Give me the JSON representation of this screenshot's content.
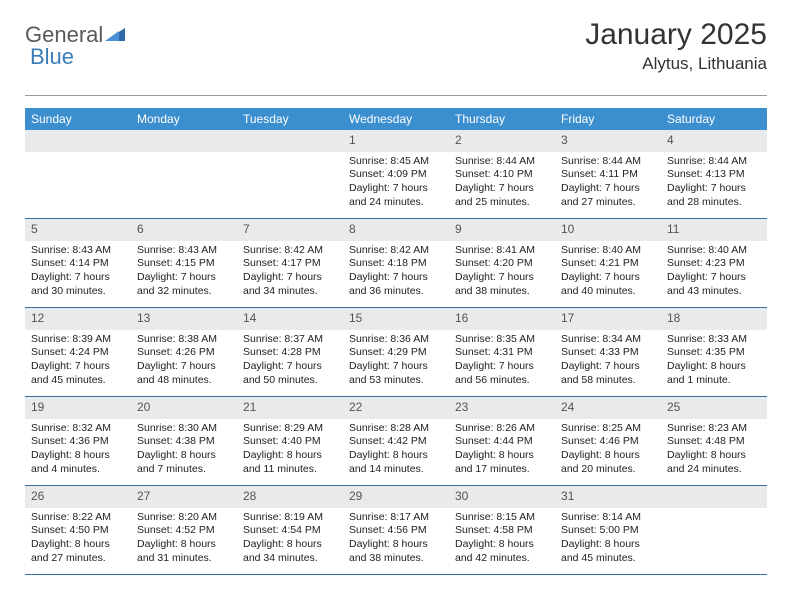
{
  "logo": {
    "text1": "General",
    "text2": "Blue"
  },
  "title": "January 2025",
  "location": "Alytus, Lithuania",
  "colors": {
    "headerBar": "#3b8fcf",
    "dayNumBg": "#e8eaec",
    "weekRule": "#3b6fa0",
    "logoAccent": "#3a7db8",
    "logoText": "#5a5a5a"
  },
  "dayNames": [
    "Sunday",
    "Monday",
    "Tuesday",
    "Wednesday",
    "Thursday",
    "Friday",
    "Saturday"
  ],
  "weeks": [
    [
      {
        "n": "",
        "sr": "",
        "ss": "",
        "dl": ""
      },
      {
        "n": "",
        "sr": "",
        "ss": "",
        "dl": ""
      },
      {
        "n": "",
        "sr": "",
        "ss": "",
        "dl": ""
      },
      {
        "n": "1",
        "sr": "Sunrise: 8:45 AM",
        "ss": "Sunset: 4:09 PM",
        "dl": "Daylight: 7 hours and 24 minutes."
      },
      {
        "n": "2",
        "sr": "Sunrise: 8:44 AM",
        "ss": "Sunset: 4:10 PM",
        "dl": "Daylight: 7 hours and 25 minutes."
      },
      {
        "n": "3",
        "sr": "Sunrise: 8:44 AM",
        "ss": "Sunset: 4:11 PM",
        "dl": "Daylight: 7 hours and 27 minutes."
      },
      {
        "n": "4",
        "sr": "Sunrise: 8:44 AM",
        "ss": "Sunset: 4:13 PM",
        "dl": "Daylight: 7 hours and 28 minutes."
      }
    ],
    [
      {
        "n": "5",
        "sr": "Sunrise: 8:43 AM",
        "ss": "Sunset: 4:14 PM",
        "dl": "Daylight: 7 hours and 30 minutes."
      },
      {
        "n": "6",
        "sr": "Sunrise: 8:43 AM",
        "ss": "Sunset: 4:15 PM",
        "dl": "Daylight: 7 hours and 32 minutes."
      },
      {
        "n": "7",
        "sr": "Sunrise: 8:42 AM",
        "ss": "Sunset: 4:17 PM",
        "dl": "Daylight: 7 hours and 34 minutes."
      },
      {
        "n": "8",
        "sr": "Sunrise: 8:42 AM",
        "ss": "Sunset: 4:18 PM",
        "dl": "Daylight: 7 hours and 36 minutes."
      },
      {
        "n": "9",
        "sr": "Sunrise: 8:41 AM",
        "ss": "Sunset: 4:20 PM",
        "dl": "Daylight: 7 hours and 38 minutes."
      },
      {
        "n": "10",
        "sr": "Sunrise: 8:40 AM",
        "ss": "Sunset: 4:21 PM",
        "dl": "Daylight: 7 hours and 40 minutes."
      },
      {
        "n": "11",
        "sr": "Sunrise: 8:40 AM",
        "ss": "Sunset: 4:23 PM",
        "dl": "Daylight: 7 hours and 43 minutes."
      }
    ],
    [
      {
        "n": "12",
        "sr": "Sunrise: 8:39 AM",
        "ss": "Sunset: 4:24 PM",
        "dl": "Daylight: 7 hours and 45 minutes."
      },
      {
        "n": "13",
        "sr": "Sunrise: 8:38 AM",
        "ss": "Sunset: 4:26 PM",
        "dl": "Daylight: 7 hours and 48 minutes."
      },
      {
        "n": "14",
        "sr": "Sunrise: 8:37 AM",
        "ss": "Sunset: 4:28 PM",
        "dl": "Daylight: 7 hours and 50 minutes."
      },
      {
        "n": "15",
        "sr": "Sunrise: 8:36 AM",
        "ss": "Sunset: 4:29 PM",
        "dl": "Daylight: 7 hours and 53 minutes."
      },
      {
        "n": "16",
        "sr": "Sunrise: 8:35 AM",
        "ss": "Sunset: 4:31 PM",
        "dl": "Daylight: 7 hours and 56 minutes."
      },
      {
        "n": "17",
        "sr": "Sunrise: 8:34 AM",
        "ss": "Sunset: 4:33 PM",
        "dl": "Daylight: 7 hours and 58 minutes."
      },
      {
        "n": "18",
        "sr": "Sunrise: 8:33 AM",
        "ss": "Sunset: 4:35 PM",
        "dl": "Daylight: 8 hours and 1 minute."
      }
    ],
    [
      {
        "n": "19",
        "sr": "Sunrise: 8:32 AM",
        "ss": "Sunset: 4:36 PM",
        "dl": "Daylight: 8 hours and 4 minutes."
      },
      {
        "n": "20",
        "sr": "Sunrise: 8:30 AM",
        "ss": "Sunset: 4:38 PM",
        "dl": "Daylight: 8 hours and 7 minutes."
      },
      {
        "n": "21",
        "sr": "Sunrise: 8:29 AM",
        "ss": "Sunset: 4:40 PM",
        "dl": "Daylight: 8 hours and 11 minutes."
      },
      {
        "n": "22",
        "sr": "Sunrise: 8:28 AM",
        "ss": "Sunset: 4:42 PM",
        "dl": "Daylight: 8 hours and 14 minutes."
      },
      {
        "n": "23",
        "sr": "Sunrise: 8:26 AM",
        "ss": "Sunset: 4:44 PM",
        "dl": "Daylight: 8 hours and 17 minutes."
      },
      {
        "n": "24",
        "sr": "Sunrise: 8:25 AM",
        "ss": "Sunset: 4:46 PM",
        "dl": "Daylight: 8 hours and 20 minutes."
      },
      {
        "n": "25",
        "sr": "Sunrise: 8:23 AM",
        "ss": "Sunset: 4:48 PM",
        "dl": "Daylight: 8 hours and 24 minutes."
      }
    ],
    [
      {
        "n": "26",
        "sr": "Sunrise: 8:22 AM",
        "ss": "Sunset: 4:50 PM",
        "dl": "Daylight: 8 hours and 27 minutes."
      },
      {
        "n": "27",
        "sr": "Sunrise: 8:20 AM",
        "ss": "Sunset: 4:52 PM",
        "dl": "Daylight: 8 hours and 31 minutes."
      },
      {
        "n": "28",
        "sr": "Sunrise: 8:19 AM",
        "ss": "Sunset: 4:54 PM",
        "dl": "Daylight: 8 hours and 34 minutes."
      },
      {
        "n": "29",
        "sr": "Sunrise: 8:17 AM",
        "ss": "Sunset: 4:56 PM",
        "dl": "Daylight: 8 hours and 38 minutes."
      },
      {
        "n": "30",
        "sr": "Sunrise: 8:15 AM",
        "ss": "Sunset: 4:58 PM",
        "dl": "Daylight: 8 hours and 42 minutes."
      },
      {
        "n": "31",
        "sr": "Sunrise: 8:14 AM",
        "ss": "Sunset: 5:00 PM",
        "dl": "Daylight: 8 hours and 45 minutes."
      },
      {
        "n": "",
        "sr": "",
        "ss": "",
        "dl": ""
      }
    ]
  ]
}
